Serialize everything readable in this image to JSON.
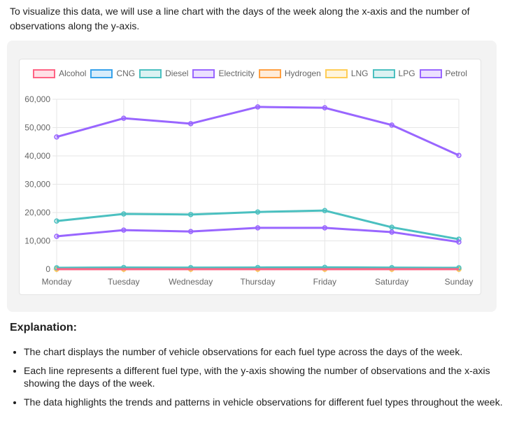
{
  "intro": "To visualize this data, we will use a line chart with the days of the week along the x-axis and the number of observations along the y-axis.",
  "chart_data": {
    "type": "line",
    "categories": [
      "Monday",
      "Tuesday",
      "Wednesday",
      "Thursday",
      "Friday",
      "Saturday",
      "Sunday"
    ],
    "ylim": [
      0,
      60000
    ],
    "yticks": [
      "0",
      "10,000",
      "20,000",
      "30,000",
      "40,000",
      "50,000",
      "60,000"
    ],
    "grid": true,
    "legend_position": "top",
    "series": [
      {
        "name": "Alcohol",
        "color": "#ff6384",
        "values": [
          0,
          0,
          0,
          0,
          0,
          0,
          0
        ]
      },
      {
        "name": "CNG",
        "color": "#36a2eb",
        "values": [
          50,
          60,
          55,
          60,
          65,
          55,
          45
        ]
      },
      {
        "name": "Diesel",
        "color": "#4bc0c0",
        "values": [
          17000,
          19500,
          19300,
          20200,
          20700,
          14800,
          10600
        ]
      },
      {
        "name": "Electricity",
        "color": "#9966ff",
        "values": [
          11600,
          13800,
          13300,
          14600,
          14600,
          13100,
          9600
        ]
      },
      {
        "name": "Hydrogen",
        "color": "#ff9f40",
        "values": [
          0,
          0,
          0,
          0,
          0,
          0,
          0
        ]
      },
      {
        "name": "LNG",
        "color": "#ffcd56",
        "values": [
          10,
          10,
          10,
          10,
          10,
          10,
          10
        ]
      },
      {
        "name": "LPG",
        "color": "#4bc0c0",
        "values": [
          500,
          600,
          550,
          600,
          650,
          550,
          480
        ]
      },
      {
        "name": "Petrol",
        "color": "#9966ff",
        "values": [
          46700,
          53300,
          51400,
          57300,
          57000,
          50900,
          40200
        ]
      }
    ]
  },
  "explanation": {
    "heading": "Explanation:",
    "bullets": [
      "The chart displays the number of vehicle observations for each fuel type across the days of the week.",
      "Each line represents a different fuel type, with the y-axis showing the number of observations and the x-axis showing the days of the week.",
      "The data highlights the trends and patterns in vehicle observations for different fuel types throughout the week."
    ]
  }
}
